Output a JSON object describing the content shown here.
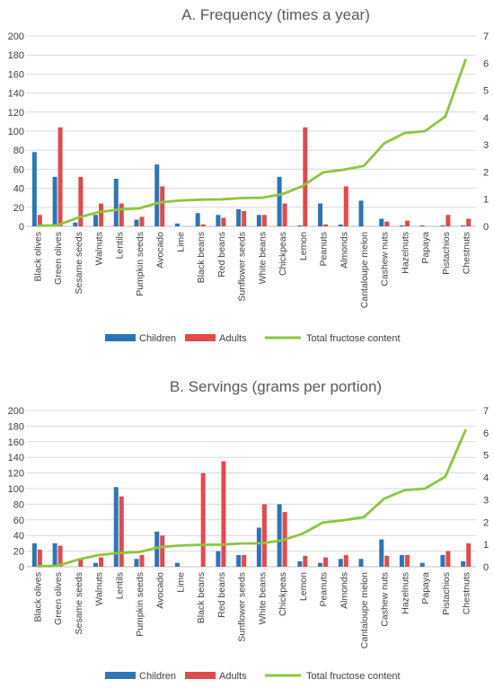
{
  "chart_data": [
    {
      "type": "bar",
      "title": "A. Frequency (times a year)",
      "categories": [
        "Black olives",
        "Green olives",
        "Sesame seeds",
        "Walnuts",
        "Lentils",
        "Pumpkin seeds",
        "Avocado",
        "Lime",
        "Black beans",
        "Red beans",
        "Sunflower seeds",
        "White beans",
        "Chickpeas",
        "Lemon",
        "Peanuts",
        "Almonds",
        "Cantaloupe melon",
        "Cashew nuts",
        "Hazelnuts",
        "Papaya",
        "Pistachios",
        "Chestnuts"
      ],
      "ylim": [
        0,
        200
      ],
      "y_ticks": [
        "0",
        "20",
        "40",
        "60",
        "80",
        "100",
        "120",
        "140",
        "160",
        "180",
        "200"
      ],
      "y2lim": [
        0,
        7
      ],
      "y2_ticks": [
        "0",
        "1",
        "2",
        "3",
        "4",
        "5",
        "6",
        "7"
      ],
      "series": [
        {
          "name": "Children",
          "kind": "bar",
          "axis": "left",
          "color": "#2E75B6",
          "values": [
            78,
            52,
            4,
            12,
            50,
            7,
            65,
            3,
            14,
            12,
            18,
            12,
            52,
            1,
            24,
            2,
            27,
            8,
            1,
            1,
            1,
            1
          ]
        },
        {
          "name": "Adults",
          "kind": "bar",
          "axis": "left",
          "color": "#E04B4B",
          "values": [
            12,
            104,
            52,
            24,
            24,
            10,
            42,
            0,
            2,
            9,
            16,
            12,
            24,
            104,
            2,
            42,
            0,
            5,
            6,
            0,
            12,
            8
          ]
        },
        {
          "name": "Total fructose content",
          "kind": "line",
          "axis": "right",
          "color": "#8CC63F",
          "values": [
            0.02,
            0.04,
            0.32,
            0.52,
            0.62,
            0.66,
            0.88,
            0.95,
            0.98,
            0.99,
            1.04,
            1.05,
            1.18,
            1.48,
            1.98,
            2.08,
            2.22,
            3.05,
            3.43,
            3.5,
            4.04,
            6.15
          ]
        }
      ],
      "legend_position": "bottom",
      "grid": true
    },
    {
      "type": "bar",
      "title": "B. Servings (grams per portion)",
      "categories": [
        "Black olives",
        "Green olives",
        "Sesame seeds",
        "Walnuts",
        "Lentils",
        "Pumpkin seeds",
        "Avocado",
        "Lime",
        "Black beans",
        "Red beans",
        "Sunflower seeds",
        "White beans",
        "Chickpeas",
        "Lemon",
        "Peanuts",
        "Almonds",
        "Cantaloupe melon",
        "Cashew nuts",
        "Hazelnuts",
        "Papaya",
        "Pistachios",
        "Chestnuts"
      ],
      "ylim": [
        0,
        200
      ],
      "y_ticks": [
        "0",
        "20",
        "40",
        "60",
        "80",
        "100",
        "120",
        "140",
        "160",
        "180",
        "200"
      ],
      "y2lim": [
        0,
        7
      ],
      "y2_ticks": [
        "0",
        "1",
        "2",
        "3",
        "4",
        "5",
        "6",
        "7"
      ],
      "series": [
        {
          "name": "Children",
          "kind": "bar",
          "axis": "left",
          "color": "#2E75B6",
          "values": [
            30,
            30,
            0,
            5,
            102,
            10,
            45,
            5,
            0,
            20,
            15,
            50,
            80,
            7,
            5,
            10,
            10,
            35,
            15,
            5,
            15,
            7
          ]
        },
        {
          "name": "Adults",
          "kind": "bar",
          "axis": "left",
          "color": "#E04B4B",
          "values": [
            22,
            27,
            10,
            12,
            90,
            15,
            40,
            0,
            120,
            135,
            15,
            80,
            70,
            14,
            12,
            15,
            0,
            14,
            15,
            0,
            20,
            30
          ]
        },
        {
          "name": "Total fructose content",
          "kind": "line",
          "axis": "right",
          "color": "#8CC63F",
          "values": [
            0.02,
            0.04,
            0.32,
            0.52,
            0.62,
            0.66,
            0.88,
            0.95,
            0.98,
            0.99,
            1.04,
            1.05,
            1.18,
            1.48,
            1.98,
            2.08,
            2.22,
            3.05,
            3.43,
            3.5,
            4.04,
            6.15
          ]
        }
      ],
      "legend_position": "bottom",
      "grid": true
    }
  ]
}
